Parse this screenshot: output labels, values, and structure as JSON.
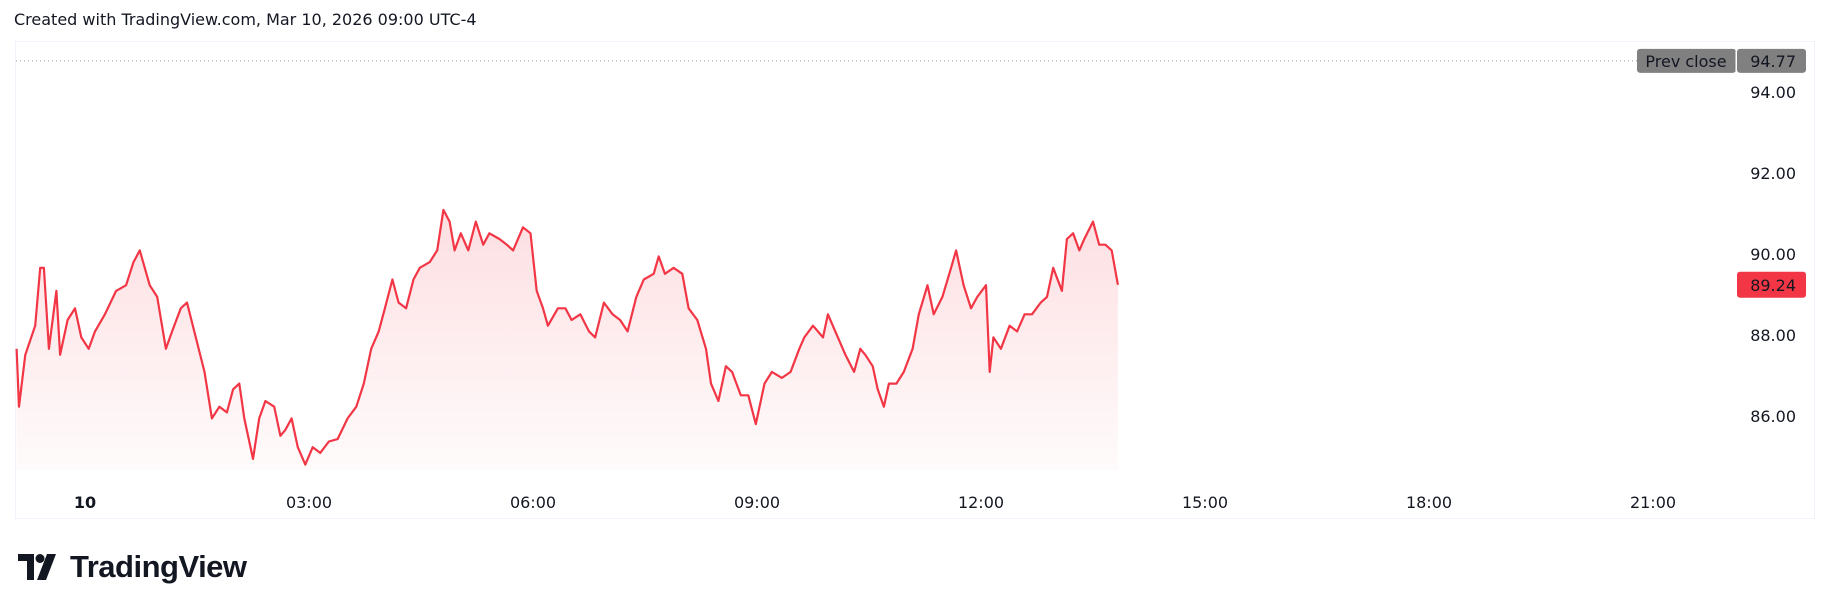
{
  "header": {
    "caption": "Created with TradingView.com, Mar 10, 2026 09:00 UTC-4"
  },
  "logo": {
    "text": "TradingView"
  },
  "colors": {
    "line": "#f23645",
    "prev_close_bg": "#808080",
    "last_price_bg": "#f23645"
  },
  "chart_data": {
    "type": "area",
    "date": "Mar 10, 2026",
    "ylim": [
      84.3,
      95.2
    ],
    "y_ticks": [
      "94.00",
      "92.00",
      "90.00",
      "88.00",
      "86.00"
    ],
    "x_ticks": [
      "10",
      "03:00",
      "06:00",
      "09:00",
      "12:00",
      "15:00",
      "18:00",
      "21:00"
    ],
    "x_range": [
      "Mar 9 23:05",
      "Mar 10 23:59"
    ],
    "prev_close": {
      "label": "Prev close",
      "value": "94.77"
    },
    "last_price": "89.24",
    "grid": false,
    "points": [
      [
        "23:05",
        87.66
      ],
      [
        "23:07",
        86.23
      ],
      [
        "23:12",
        87.51
      ],
      [
        "23:20",
        88.23
      ],
      [
        "23:24",
        89.66
      ],
      [
        "23:27",
        89.66
      ],
      [
        "23:31",
        87.66
      ],
      [
        "23:37",
        89.09
      ],
      [
        "23:40",
        87.51
      ],
      [
        "23:46",
        88.37
      ],
      [
        "23:52",
        88.66
      ],
      [
        "23:57",
        87.94
      ],
      [
        "00:03",
        87.66
      ],
      [
        "00:08",
        88.09
      ],
      [
        "00:16",
        88.51
      ],
      [
        "00:25",
        89.09
      ],
      [
        "00:33",
        89.23
      ],
      [
        "00:39",
        89.8
      ],
      [
        "00:44",
        90.09
      ],
      [
        "00:52",
        89.23
      ],
      [
        "00:58",
        88.94
      ],
      [
        "01:05",
        87.66
      ],
      [
        "01:10",
        88.09
      ],
      [
        "01:17",
        88.66
      ],
      [
        "01:22",
        88.8
      ],
      [
        "01:29",
        87.94
      ],
      [
        "01:36",
        87.09
      ],
      [
        "01:42",
        85.94
      ],
      [
        "01:48",
        86.23
      ],
      [
        "01:54",
        86.09
      ],
      [
        "01:59",
        86.66
      ],
      [
        "02:04",
        86.8
      ],
      [
        "02:08",
        85.94
      ],
      [
        "02:15",
        84.94
      ],
      [
        "02:20",
        85.94
      ],
      [
        "02:25",
        86.37
      ],
      [
        "02:32",
        86.23
      ],
      [
        "02:37",
        85.51
      ],
      [
        "02:41",
        85.66
      ],
      [
        "02:46",
        85.94
      ],
      [
        "02:51",
        85.23
      ],
      [
        "02:57",
        84.8
      ],
      [
        "03:03",
        85.23
      ],
      [
        "03:09",
        85.09
      ],
      [
        "03:16",
        85.37
      ],
      [
        "03:23",
        85.43
      ],
      [
        "03:31",
        85.94
      ],
      [
        "03:38",
        86.23
      ],
      [
        "03:44",
        86.8
      ],
      [
        "03:50",
        87.66
      ],
      [
        "03:56",
        88.09
      ],
      [
        "04:01",
        88.66
      ],
      [
        "04:07",
        89.37
      ],
      [
        "04:12",
        88.8
      ],
      [
        "04:18",
        88.66
      ],
      [
        "04:24",
        89.37
      ],
      [
        "04:29",
        89.66
      ],
      [
        "04:37",
        89.8
      ],
      [
        "04:43",
        90.09
      ],
      [
        "04:48",
        91.09
      ],
      [
        "04:53",
        90.8
      ],
      [
        "04:57",
        90.09
      ],
      [
        "05:02",
        90.51
      ],
      [
        "05:08",
        90.09
      ],
      [
        "05:14",
        90.8
      ],
      [
        "05:20",
        90.23
      ],
      [
        "05:25",
        90.51
      ],
      [
        "05:33",
        90.37
      ],
      [
        "05:39",
        90.23
      ],
      [
        "05:44",
        90.09
      ],
      [
        "05:52",
        90.66
      ],
      [
        "05:58",
        90.51
      ],
      [
        "06:03",
        89.09
      ],
      [
        "06:08",
        88.66
      ],
      [
        "06:12",
        88.23
      ],
      [
        "06:20",
        88.66
      ],
      [
        "06:26",
        88.66
      ],
      [
        "06:31",
        88.37
      ],
      [
        "06:38",
        88.51
      ],
      [
        "06:45",
        88.09
      ],
      [
        "06:50",
        87.94
      ],
      [
        "06:57",
        88.8
      ],
      [
        "07:04",
        88.51
      ],
      [
        "07:10",
        88.37
      ],
      [
        "07:16",
        88.09
      ],
      [
        "07:23",
        88.94
      ],
      [
        "07:29",
        89.37
      ],
      [
        "07:37",
        89.51
      ],
      [
        "07:41",
        89.94
      ],
      [
        "07:46",
        89.51
      ],
      [
        "07:53",
        89.66
      ],
      [
        "08:00",
        89.51
      ],
      [
        "08:05",
        88.66
      ],
      [
        "08:12",
        88.37
      ],
      [
        "08:19",
        87.66
      ],
      [
        "08:23",
        86.8
      ],
      [
        "08:29",
        86.37
      ],
      [
        "08:35",
        87.23
      ],
      [
        "08:40",
        87.09
      ],
      [
        "08:47",
        86.51
      ],
      [
        "08:53",
        86.51
      ],
      [
        "08:59",
        85.8
      ],
      [
        "09:06",
        86.8
      ],
      [
        "09:12",
        87.09
      ],
      [
        "09:20",
        86.94
      ],
      [
        "09:27",
        87.09
      ],
      [
        "09:34",
        87.66
      ],
      [
        "09:38",
        87.94
      ],
      [
        "09:45",
        88.23
      ],
      [
        "09:53",
        87.94
      ],
      [
        "09:57",
        88.51
      ],
      [
        "10:05",
        87.94
      ],
      [
        "10:11",
        87.51
      ],
      [
        "10:18",
        87.09
      ],
      [
        "10:23",
        87.66
      ],
      [
        "10:27",
        87.51
      ],
      [
        "10:33",
        87.23
      ],
      [
        "10:37",
        86.66
      ],
      [
        "10:42",
        86.23
      ],
      [
        "10:46",
        86.8
      ],
      [
        "10:52",
        86.8
      ],
      [
        "10:58",
        87.09
      ],
      [
        "11:05",
        87.66
      ],
      [
        "11:10",
        88.51
      ],
      [
        "11:17",
        89.23
      ],
      [
        "11:22",
        88.51
      ],
      [
        "11:29",
        88.94
      ],
      [
        "11:36",
        89.66
      ],
      [
        "11:40",
        90.09
      ],
      [
        "11:46",
        89.23
      ],
      [
        "11:52",
        88.66
      ],
      [
        "11:57",
        88.94
      ],
      [
        "12:04",
        89.23
      ],
      [
        "12:07",
        87.09
      ],
      [
        "12:10",
        87.94
      ],
      [
        "12:16",
        87.66
      ],
      [
        "12:23",
        88.23
      ],
      [
        "12:29",
        88.09
      ],
      [
        "12:35",
        88.51
      ],
      [
        "12:41",
        88.51
      ],
      [
        "12:48",
        88.8
      ],
      [
        "12:53",
        88.94
      ],
      [
        "12:58",
        89.66
      ],
      [
        "13:05",
        89.09
      ],
      [
        "13:09",
        90.37
      ],
      [
        "13:14",
        90.51
      ],
      [
        "13:19",
        90.09
      ],
      [
        "13:23",
        90.37
      ],
      [
        "13:30",
        90.8
      ],
      [
        "13:35",
        90.23
      ],
      [
        "13:40",
        90.23
      ],
      [
        "13:45",
        90.09
      ],
      [
        "13:50",
        89.24
      ]
    ]
  }
}
